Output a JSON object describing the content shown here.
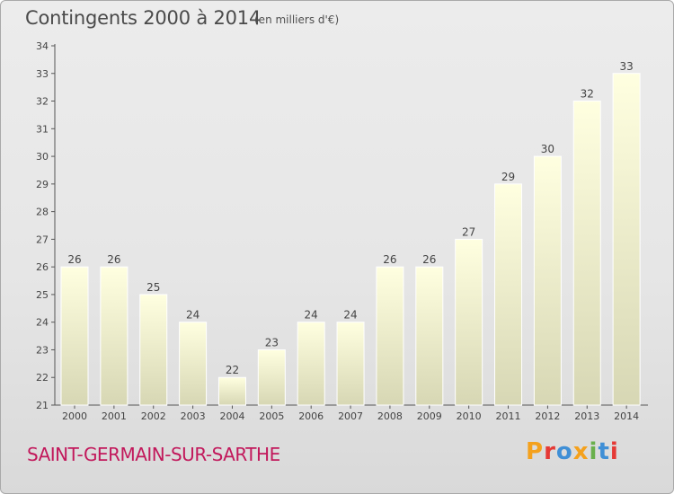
{
  "header": {
    "title": "Contingents 2000 à 2014",
    "unit": "(en milliers d'€)"
  },
  "footer": {
    "place": "SAINT-GERMAIN-SUR-SARTHE",
    "brand": "Proxiti"
  },
  "colors": {
    "bar_top": "#ffffe0",
    "bar_bottom": "#d7d7b4",
    "place_text": "#c2185b",
    "logo_letters": [
      "#f4a11d",
      "#e53935",
      "#3f8fd6",
      "#f4a11d",
      "#6ab04c",
      "#3f8fd6",
      "#e53935"
    ]
  },
  "chart_data": {
    "type": "bar",
    "title": "Contingents 2000 à 2014",
    "xlabel": "",
    "ylabel": "",
    "categories": [
      "2000",
      "2001",
      "2002",
      "2003",
      "2004",
      "2005",
      "2006",
      "2007",
      "2008",
      "2009",
      "2010",
      "2011",
      "2012",
      "2013",
      "2014"
    ],
    "values": [
      26,
      26,
      25,
      24,
      22,
      23,
      24,
      24,
      26,
      26,
      27,
      29,
      30,
      32,
      33
    ],
    "ylim": [
      21,
      34
    ],
    "yticks": [
      21,
      22,
      23,
      24,
      25,
      26,
      27,
      28,
      29,
      30,
      31,
      32,
      33,
      34
    ],
    "grid": false,
    "legend": "none"
  }
}
